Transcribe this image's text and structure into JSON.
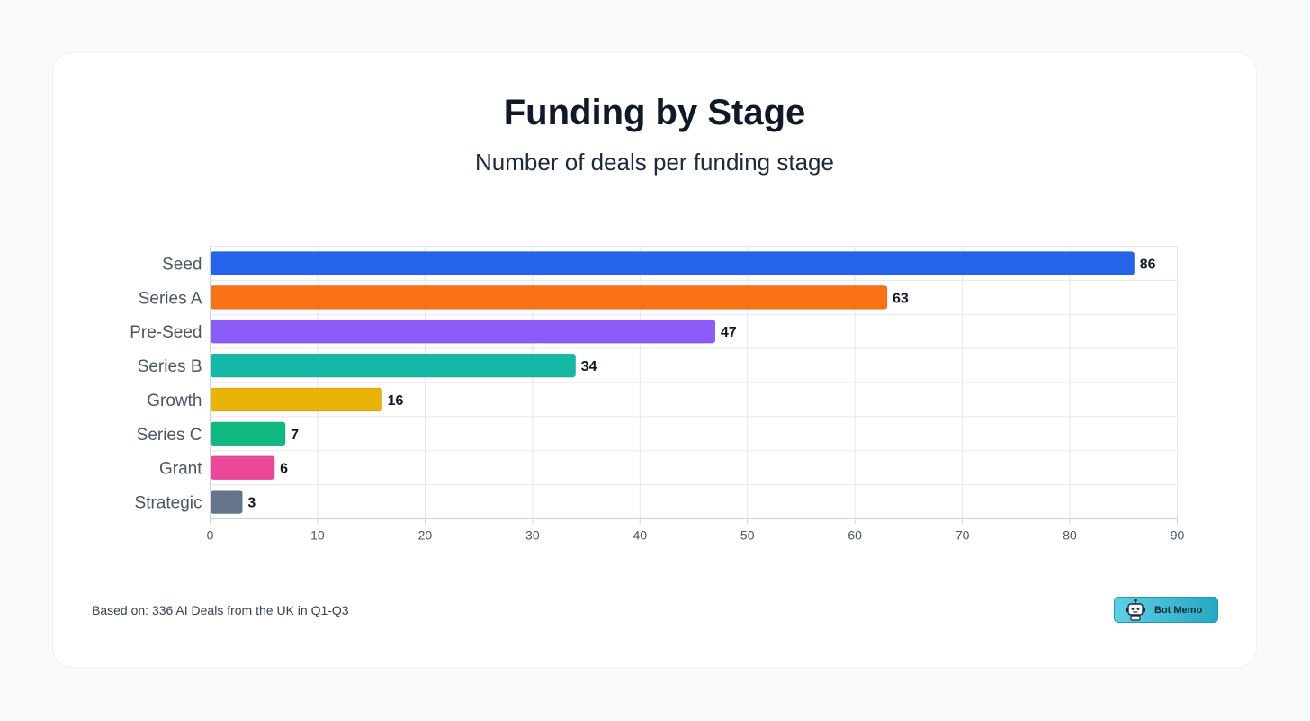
{
  "chart_data": {
    "type": "bar",
    "orientation": "horizontal",
    "title": "Funding by Stage",
    "subtitle": "Number of deals per funding stage",
    "categories": [
      "Seed",
      "Series A",
      "Pre-Seed",
      "Series B",
      "Growth",
      "Series C",
      "Grant",
      "Strategic"
    ],
    "values": [
      86,
      63,
      47,
      34,
      16,
      7,
      6,
      3
    ],
    "colors": [
      "#2563eb",
      "#f97316",
      "#8b5cf6",
      "#14b8a6",
      "#eab308",
      "#10b981",
      "#ec4899",
      "#64748b"
    ],
    "xticks": [
      0,
      10,
      20,
      30,
      40,
      50,
      60,
      70,
      80,
      90
    ],
    "xlim": [
      0,
      90
    ],
    "xlabel": "",
    "ylabel": "",
    "grid": true,
    "data_labels": true
  },
  "footer": {
    "note": "Based on: 336 AI Deals from the UK in Q1-Q3",
    "brand_label": "Bot Memo",
    "brand_icon": "robot-icon"
  }
}
